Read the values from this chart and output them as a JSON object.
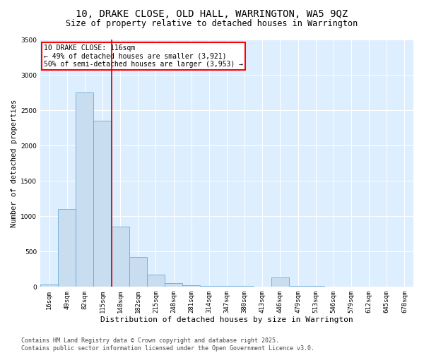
{
  "title_line1": "10, DRAKE CLOSE, OLD HALL, WARRINGTON, WA5 9QZ",
  "title_line2": "Size of property relative to detached houses in Warrington",
  "xlabel": "Distribution of detached houses by size in Warrington",
  "ylabel": "Number of detached properties",
  "categories": [
    "16sqm",
    "49sqm",
    "82sqm",
    "115sqm",
    "148sqm",
    "182sqm",
    "215sqm",
    "248sqm",
    "281sqm",
    "314sqm",
    "347sqm",
    "380sqm",
    "413sqm",
    "446sqm",
    "479sqm",
    "513sqm",
    "546sqm",
    "579sqm",
    "612sqm",
    "645sqm",
    "678sqm"
  ],
  "values": [
    30,
    1100,
    2750,
    2350,
    850,
    420,
    170,
    50,
    20,
    15,
    10,
    15,
    5,
    130,
    10,
    8,
    5,
    3,
    2,
    2,
    1
  ],
  "bar_color": "#c9ddf0",
  "bar_edge_color": "#6aaad4",
  "vline_color": "#cc0000",
  "annotation_box_text": "10 DRAKE CLOSE: 116sqm\n← 49% of detached houses are smaller (3,921)\n50% of semi-detached houses are larger (3,953) →",
  "ylim": [
    0,
    3500
  ],
  "yticks": [
    0,
    500,
    1000,
    1500,
    2000,
    2500,
    3000,
    3500
  ],
  "background_color": "#ddeeff",
  "grid_color": "#ffffff",
  "footer_text": "Contains HM Land Registry data © Crown copyright and database right 2025.\nContains public sector information licensed under the Open Government Licence v3.0.",
  "title_fontsize": 10,
  "subtitle_fontsize": 8.5,
  "xlabel_fontsize": 8,
  "ylabel_fontsize": 7.5,
  "tick_fontsize": 6.5,
  "annotation_fontsize": 7,
  "footer_fontsize": 6
}
